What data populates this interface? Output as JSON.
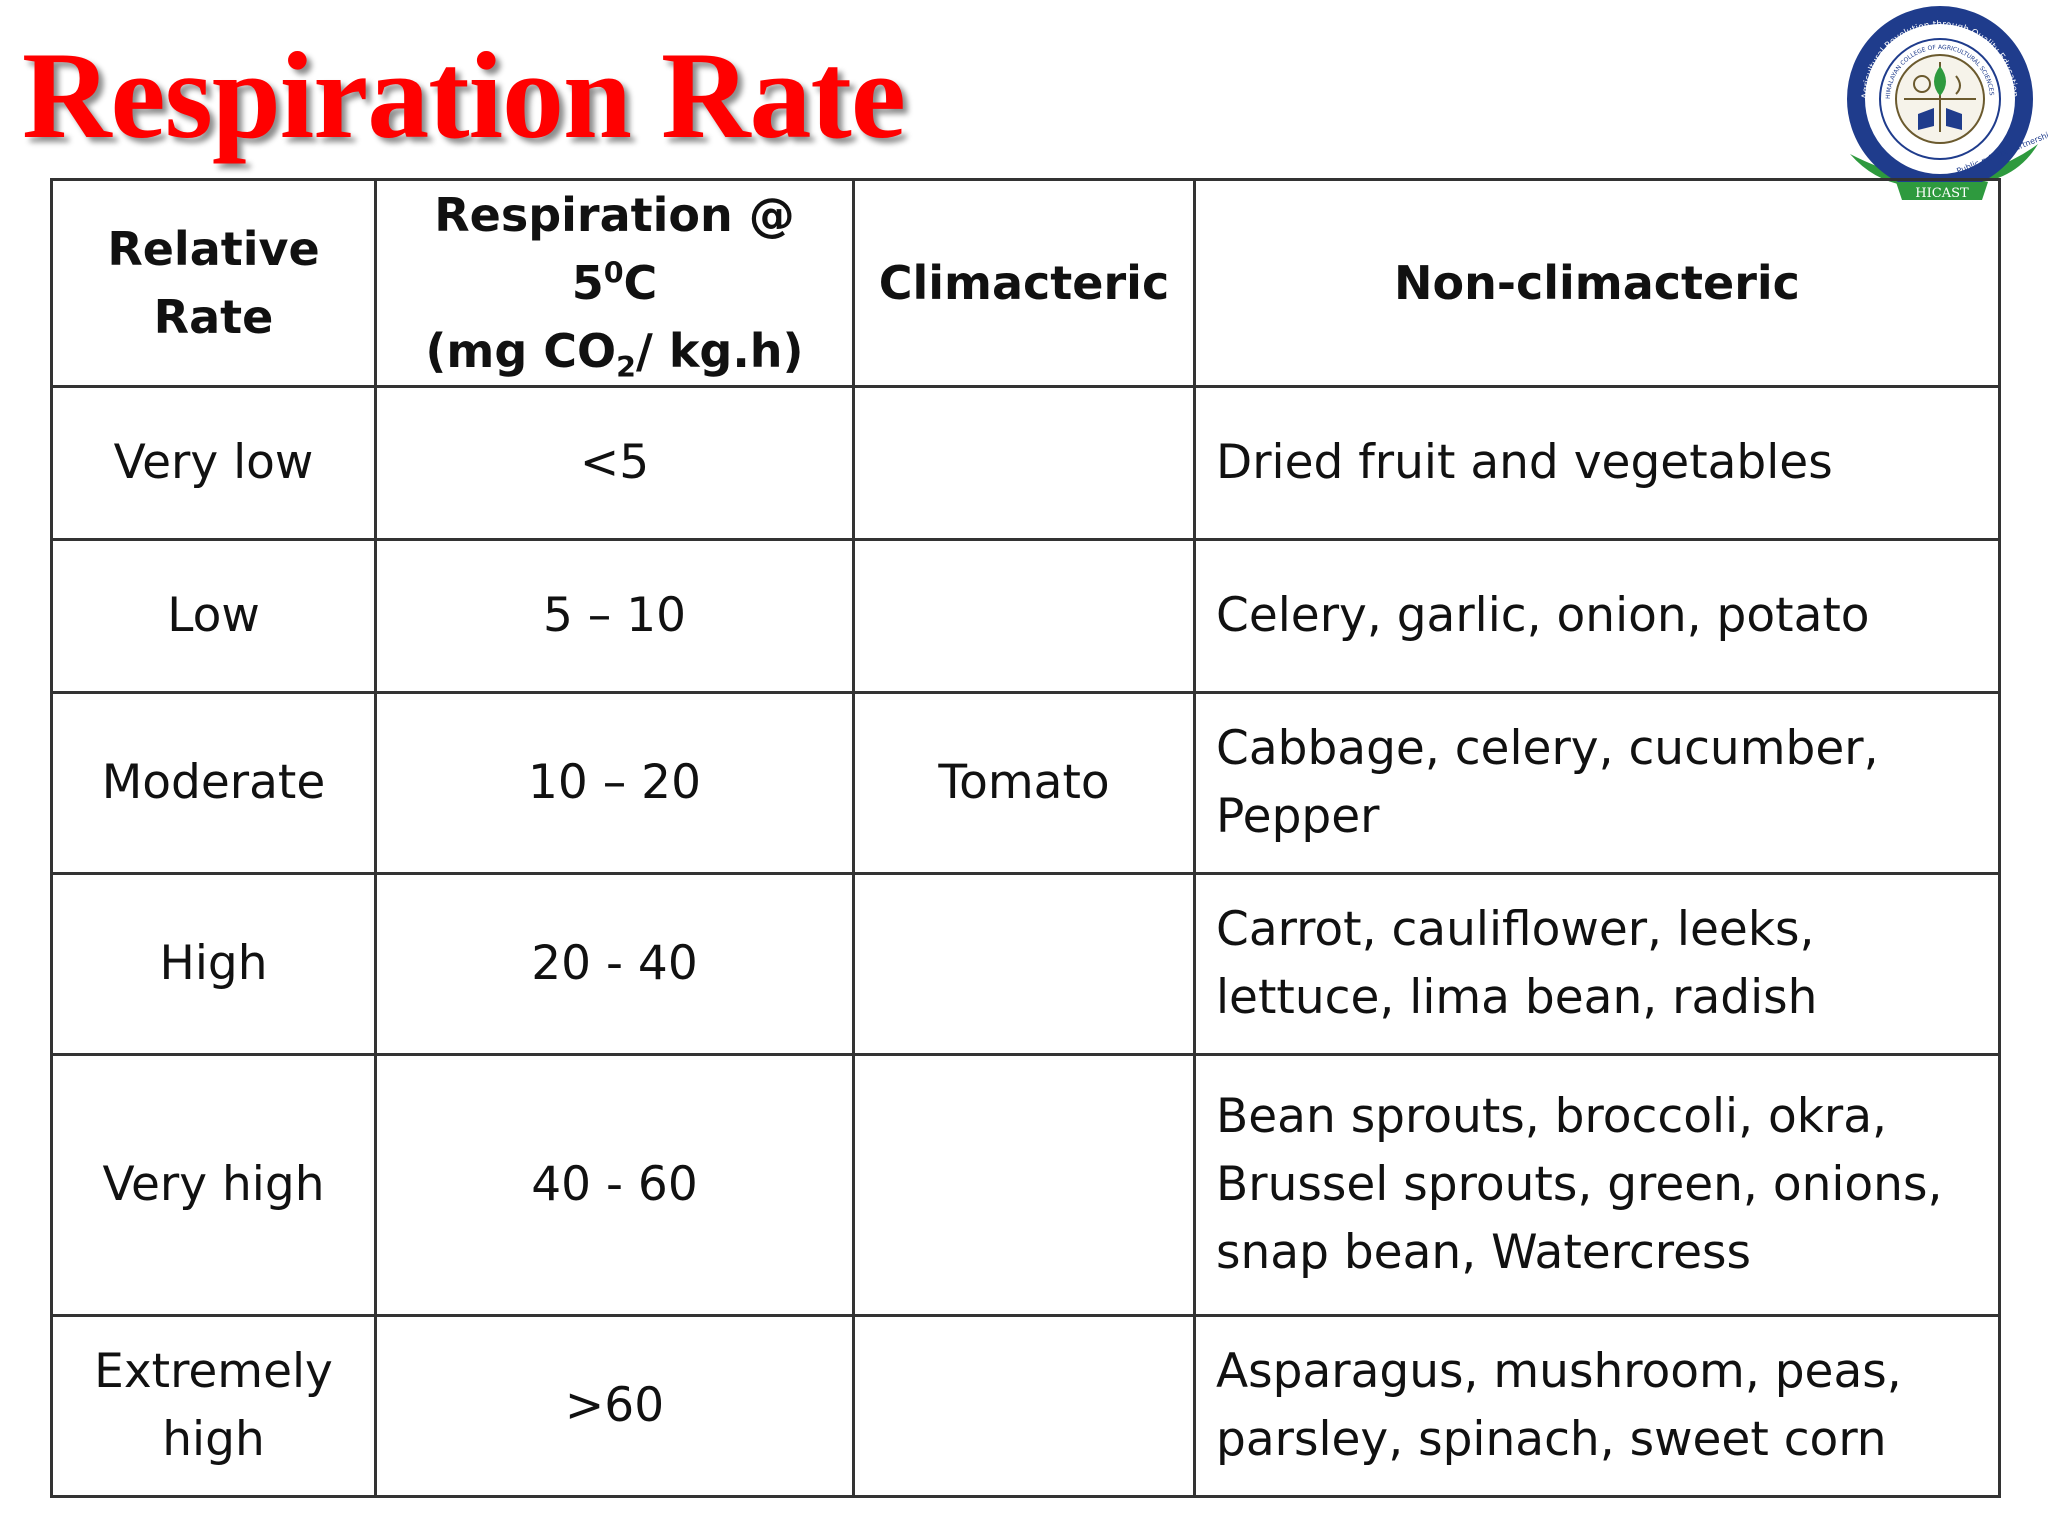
{
  "title": "Respiration Rate",
  "logo": {
    "ring_text": "Agricultural Revolution through Quality Education",
    "inner_text": "HIMALAYAN COLLEGE OF AGRICULTURAL SCIENCES & TECHNOLOGY",
    "year_text": "NEPAL - 2000",
    "motto": "Public-private partnership",
    "banner": "HICAST",
    "colors": {
      "ring": "#1f3c8c",
      "leaves": "#2e9a3e",
      "banner": "#2e9a3e"
    }
  },
  "table": {
    "headers": {
      "col1": "Relative Rate",
      "col2_line1_pre": "Respiration @ 5",
      "col2_sup": "0",
      "col2_line1_post": "C",
      "col2_line2_pre": "(mg CO",
      "col2_sub": "2",
      "col2_line2_post": "/ kg.h)",
      "col3": "Climacteric",
      "col4": "Non-climacteric"
    },
    "rows": [
      {
        "rate": "Very low",
        "value": "<5",
        "climacteric": "",
        "non_climacteric": "Dried fruit and vegetables"
      },
      {
        "rate": "Low",
        "value": "5 – 10",
        "climacteric": "",
        "non_climacteric": "Celery, garlic, onion, potato"
      },
      {
        "rate": "Moderate",
        "value": "10 – 20",
        "climacteric": "Tomato",
        "non_climacteric": "Cabbage, celery, cucumber, Pepper"
      },
      {
        "rate": "High",
        "value": "20 - 40",
        "climacteric": "",
        "non_climacteric": "Carrot, cauliflower, leeks, lettuce, lima bean, radish"
      },
      {
        "rate": "Very high",
        "value": "40 - 60",
        "climacteric": "",
        "non_climacteric": "Bean sprouts, broccoli, okra, Brussel sprouts, green, onions, snap bean, Watercress"
      },
      {
        "rate": "Extremely high",
        "value": ">60",
        "climacteric": "",
        "non_climacteric": "Asparagus, mushroom, peas, parsley, spinach, sweet corn"
      }
    ]
  }
}
